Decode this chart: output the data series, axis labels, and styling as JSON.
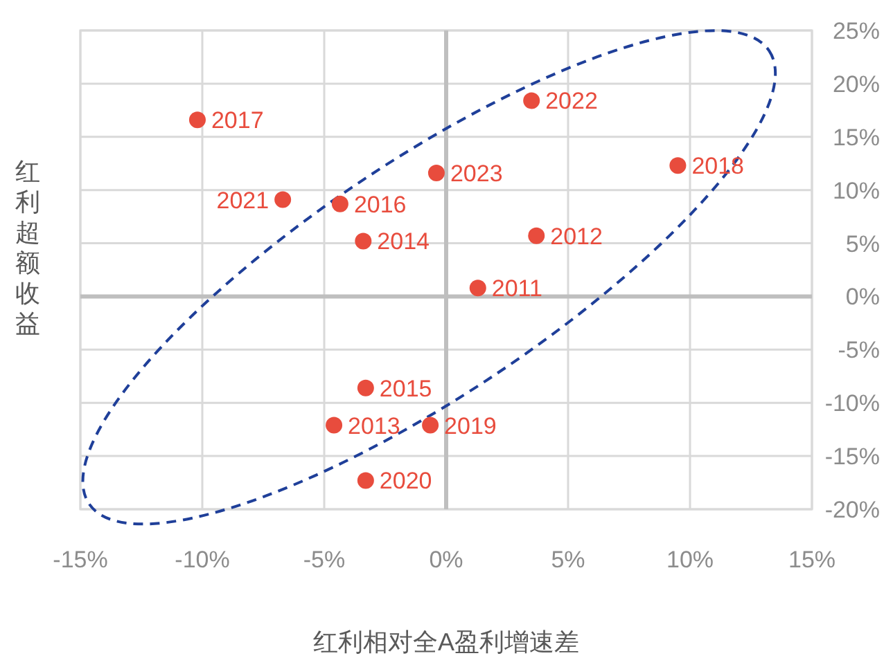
{
  "chart_data": {
    "type": "scatter",
    "xlabel": "红利相对全A盈利增速差",
    "ylabel": "红利超额收益",
    "xlim": [
      -15,
      15
    ],
    "ylim": [
      -20,
      25
    ],
    "xticks": [
      {
        "value": -15,
        "label": "-15%"
      },
      {
        "value": -10,
        "label": "-10%"
      },
      {
        "value": -5,
        "label": "-5%"
      },
      {
        "value": 0,
        "label": "0%"
      },
      {
        "value": 5,
        "label": "5%"
      },
      {
        "value": 10,
        "label": "10%"
      },
      {
        "value": 15,
        "label": "15%"
      }
    ],
    "yticks": [
      {
        "value": -20,
        "label": "-20%"
      },
      {
        "value": -15,
        "label": "-15%"
      },
      {
        "value": -10,
        "label": "-10%"
      },
      {
        "value": -5,
        "label": "-5%"
      },
      {
        "value": 0,
        "label": "0%"
      },
      {
        "value": 5,
        "label": "5%"
      },
      {
        "value": 10,
        "label": "10%"
      },
      {
        "value": 15,
        "label": "15%"
      },
      {
        "value": 20,
        "label": "20%"
      },
      {
        "value": 25,
        "label": "25%"
      }
    ],
    "grid": true,
    "marker": "circle",
    "series": [
      {
        "color": "#e84c3d",
        "x": [
          -10.2,
          -6.7,
          -4.35,
          -3.4,
          -0.4,
          3.5,
          9.5,
          3.7,
          1.3,
          -3.3,
          -4.6,
          -0.65,
          -3.3
        ],
        "values": [
          16.6,
          9.1,
          8.7,
          5.2,
          11.6,
          18.4,
          12.3,
          5.7,
          0.8,
          -8.6,
          -12.1,
          -12.1,
          -17.3
        ]
      }
    ],
    "annotations": [
      {
        "text": "2017",
        "x": -10.2,
        "y": 16.6
      },
      {
        "text": "2021",
        "x": -6.7,
        "y": 9.1
      },
      {
        "text": "2016",
        "x": -4.35,
        "y": 8.7
      },
      {
        "text": "2014",
        "x": -3.4,
        "y": 5.2
      },
      {
        "text": "2023",
        "x": -0.4,
        "y": 11.6
      },
      {
        "text": "2022",
        "x": 3.5,
        "y": 18.4
      },
      {
        "text": "2018",
        "x": 9.5,
        "y": 12.3
      },
      {
        "text": "2012",
        "x": 3.7,
        "y": 5.7
      },
      {
        "text": "2011",
        "x": 1.3,
        "y": 0.8
      },
      {
        "text": "2015",
        "x": -3.3,
        "y": -8.6
      },
      {
        "text": "2013",
        "x": -4.6,
        "y": -12.1
      },
      {
        "text": "2019",
        "x": -0.65,
        "y": -12.1
      },
      {
        "text": "2020",
        "x": -3.3,
        "y": -17.3
      }
    ]
  }
}
